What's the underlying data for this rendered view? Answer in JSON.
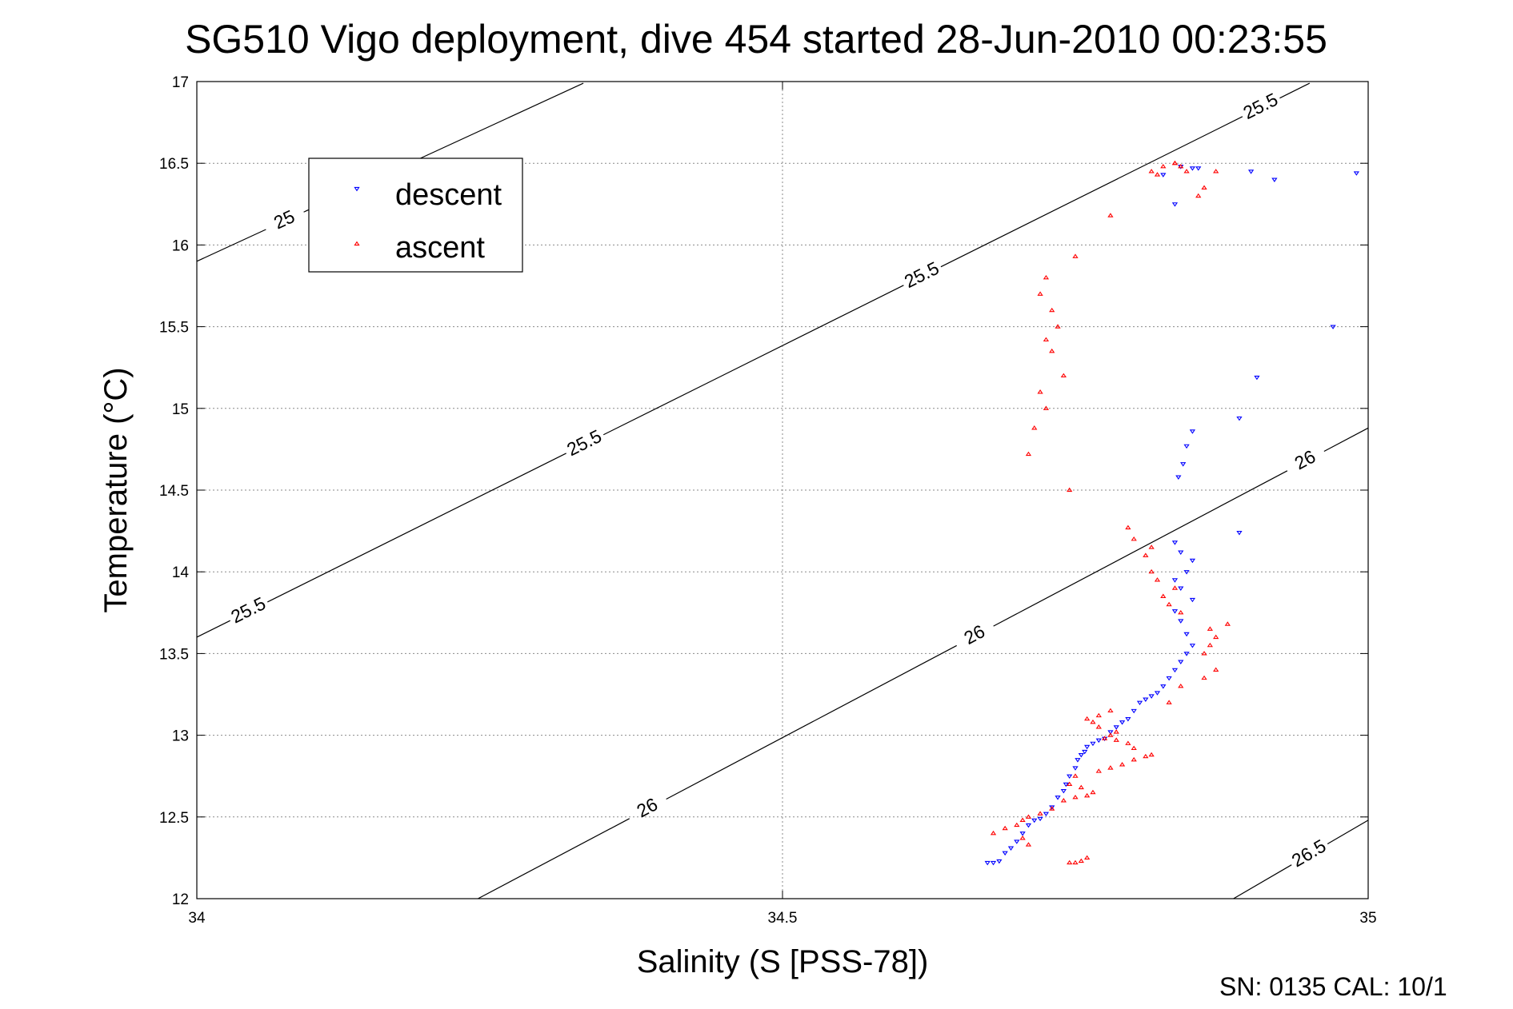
{
  "chart_data": {
    "type": "scatter",
    "title": "SG510 Vigo deployment, dive 454 started 28-Jun-2010 00:23:55",
    "xlabel": "Salinity (S [PSS-78])",
    "ylabel": "Temperature (°C)",
    "xlim": [
      34,
      35
    ],
    "ylim": [
      12,
      17
    ],
    "x_ticks": [
      "34",
      "34.5",
      "35"
    ],
    "y_ticks": [
      "12",
      "12.5",
      "13",
      "13.5",
      "14",
      "14.5",
      "15",
      "15.5",
      "16",
      "16.5",
      "17"
    ],
    "grid": true,
    "legend_position": "top-left",
    "footer": "SN: 0135  CAL: 10/1",
    "contours": [
      {
        "level": "25",
        "points": [
          [
            34,
            15.9
          ],
          [
            34.33,
            16.99
          ]
        ],
        "labels": [
          [
            34.075,
            16.15
          ]
        ]
      },
      {
        "level": "25.5",
        "points": [
          [
            34,
            13.6
          ],
          [
            34.95,
            16.99
          ]
        ],
        "labels": [
          [
            34.045,
            13.75
          ],
          [
            34.33,
            14.8
          ],
          [
            34.62,
            15.8
          ],
          [
            34.915,
            16.75
          ]
        ]
      },
      {
        "level": "26",
        "points": [
          [
            34.24,
            12.0
          ],
          [
            35,
            14.88
          ]
        ],
        "labels": [
          [
            34.385,
            12.55
          ],
          [
            34.665,
            13.6
          ],
          [
            34.945,
            14.7
          ]
        ]
      },
      {
        "level": "26.5",
        "points": [
          [
            34.885,
            12.0
          ],
          [
            35,
            12.48
          ]
        ],
        "labels": [
          [
            34.95,
            12.27
          ]
        ]
      }
    ],
    "series": [
      {
        "name": "descent",
        "color": "#0000ff",
        "marker": "triangle-down",
        "points": [
          [
            34.675,
            12.22
          ],
          [
            34.68,
            12.22
          ],
          [
            34.685,
            12.23
          ],
          [
            34.69,
            12.28
          ],
          [
            34.695,
            12.31
          ],
          [
            34.7,
            12.35
          ],
          [
            34.705,
            12.4
          ],
          [
            34.71,
            12.45
          ],
          [
            34.715,
            12.48
          ],
          [
            34.72,
            12.49
          ],
          [
            34.725,
            12.52
          ],
          [
            34.73,
            12.56
          ],
          [
            34.735,
            12.62
          ],
          [
            34.74,
            12.66
          ],
          [
            34.742,
            12.7
          ],
          [
            34.745,
            12.75
          ],
          [
            34.75,
            12.8
          ],
          [
            34.752,
            12.85
          ],
          [
            34.755,
            12.88
          ],
          [
            34.758,
            12.9
          ],
          [
            34.76,
            12.93
          ],
          [
            34.765,
            12.95
          ],
          [
            34.77,
            12.97
          ],
          [
            34.775,
            12.98
          ],
          [
            34.78,
            13.02
          ],
          [
            34.785,
            13.05
          ],
          [
            34.79,
            13.08
          ],
          [
            34.795,
            13.1
          ],
          [
            34.8,
            13.15
          ],
          [
            34.805,
            13.2
          ],
          [
            34.81,
            13.22
          ],
          [
            34.815,
            13.24
          ],
          [
            34.82,
            13.26
          ],
          [
            34.825,
            13.3
          ],
          [
            34.83,
            13.35
          ],
          [
            34.835,
            13.4
          ],
          [
            34.84,
            13.45
          ],
          [
            34.845,
            13.5
          ],
          [
            34.85,
            13.55
          ],
          [
            34.845,
            13.62
          ],
          [
            34.84,
            13.7
          ],
          [
            34.835,
            13.76
          ],
          [
            34.85,
            13.83
          ],
          [
            34.84,
            13.9
          ],
          [
            34.835,
            13.95
          ],
          [
            34.845,
            14.0
          ],
          [
            34.85,
            14.07
          ],
          [
            34.84,
            14.12
          ],
          [
            34.835,
            14.18
          ],
          [
            34.89,
            14.24
          ],
          [
            34.838,
            14.58
          ],
          [
            34.842,
            14.66
          ],
          [
            34.845,
            14.77
          ],
          [
            34.85,
            14.86
          ],
          [
            34.89,
            14.94
          ],
          [
            34.905,
            15.19
          ],
          [
            34.97,
            15.5
          ],
          [
            34.825,
            16.43
          ],
          [
            34.835,
            16.25
          ],
          [
            34.84,
            16.48
          ],
          [
            34.85,
            16.47
          ],
          [
            34.855,
            16.47
          ],
          [
            34.9,
            16.45
          ],
          [
            34.92,
            16.4
          ],
          [
            34.99,
            16.44
          ]
        ]
      },
      {
        "name": "ascent",
        "color": "#ff0000",
        "marker": "triangle-up",
        "points": [
          [
            34.75,
            12.22
          ],
          [
            34.745,
            12.22
          ],
          [
            34.755,
            12.23
          ],
          [
            34.76,
            12.25
          ],
          [
            34.71,
            12.33
          ],
          [
            34.705,
            12.37
          ],
          [
            34.68,
            12.4
          ],
          [
            34.69,
            12.43
          ],
          [
            34.7,
            12.45
          ],
          [
            34.705,
            12.48
          ],
          [
            34.71,
            12.5
          ],
          [
            34.72,
            12.52
          ],
          [
            34.73,
            12.55
          ],
          [
            34.74,
            12.6
          ],
          [
            34.75,
            12.62
          ],
          [
            34.76,
            12.63
          ],
          [
            34.765,
            12.65
          ],
          [
            34.755,
            12.68
          ],
          [
            34.745,
            12.7
          ],
          [
            34.75,
            12.75
          ],
          [
            34.77,
            12.78
          ],
          [
            34.78,
            12.8
          ],
          [
            34.79,
            12.82
          ],
          [
            34.8,
            12.85
          ],
          [
            34.81,
            12.87
          ],
          [
            34.815,
            12.88
          ],
          [
            34.8,
            12.92
          ],
          [
            34.795,
            12.95
          ],
          [
            34.785,
            12.97
          ],
          [
            34.775,
            12.98
          ],
          [
            34.78,
            13.0
          ],
          [
            34.785,
            13.02
          ],
          [
            34.77,
            13.05
          ],
          [
            34.765,
            13.08
          ],
          [
            34.76,
            13.1
          ],
          [
            34.77,
            13.12
          ],
          [
            34.78,
            13.15
          ],
          [
            34.83,
            13.2
          ],
          [
            34.84,
            13.3
          ],
          [
            34.86,
            13.35
          ],
          [
            34.87,
            13.4
          ],
          [
            34.86,
            13.5
          ],
          [
            34.865,
            13.55
          ],
          [
            34.87,
            13.6
          ],
          [
            34.865,
            13.65
          ],
          [
            34.88,
            13.68
          ],
          [
            34.84,
            13.75
          ],
          [
            34.83,
            13.8
          ],
          [
            34.825,
            13.85
          ],
          [
            34.835,
            13.9
          ],
          [
            34.82,
            13.95
          ],
          [
            34.815,
            14.0
          ],
          [
            34.81,
            14.1
          ],
          [
            34.815,
            14.15
          ],
          [
            34.8,
            14.2
          ],
          [
            34.795,
            14.27
          ],
          [
            34.745,
            14.5
          ],
          [
            34.71,
            14.72
          ],
          [
            34.715,
            14.88
          ],
          [
            34.725,
            15.0
          ],
          [
            34.72,
            15.1
          ],
          [
            34.74,
            15.2
          ],
          [
            34.73,
            15.35
          ],
          [
            34.725,
            15.42
          ],
          [
            34.735,
            15.5
          ],
          [
            34.73,
            15.6
          ],
          [
            34.72,
            15.7
          ],
          [
            34.725,
            15.8
          ],
          [
            34.75,
            15.93
          ],
          [
            34.78,
            16.18
          ],
          [
            34.815,
            16.45
          ],
          [
            34.82,
            16.43
          ],
          [
            34.825,
            16.48
          ],
          [
            34.835,
            16.5
          ],
          [
            34.845,
            16.45
          ],
          [
            34.86,
            16.35
          ],
          [
            34.855,
            16.3
          ],
          [
            34.87,
            16.45
          ],
          [
            34.84,
            16.48
          ],
          [
            34.835,
            16.5
          ]
        ]
      }
    ]
  }
}
